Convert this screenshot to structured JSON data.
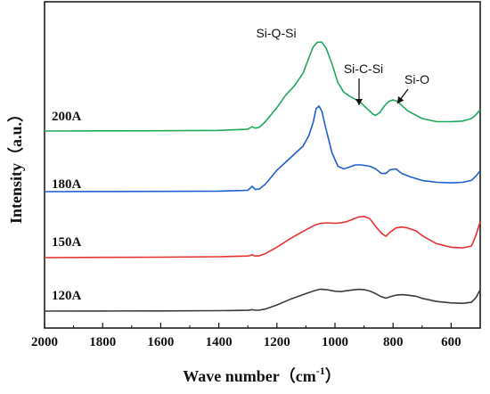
{
  "chart_data": {
    "type": "line",
    "xlabel": "Wave number（cm",
    "xlabel_sup": "-1",
    "xlabel_close": "）",
    "ylabel": "Intensity（a.u.）",
    "xlim": [
      2000,
      500
    ],
    "x_reversed": true,
    "x_ticks": [
      2000,
      1800,
      1600,
      1400,
      1200,
      1000,
      800,
      600
    ],
    "y_ticks_visible": false,
    "grid": false,
    "legend": "none",
    "series": [
      {
        "name": "120A",
        "color": "#3b3b3b",
        "x": [
          2000,
          1800,
          1600,
          1400,
          1300,
          1285,
          1275,
          1260,
          1240,
          1200,
          1150,
          1100,
          1070,
          1050,
          1030,
          1000,
          980,
          960,
          940,
          920,
          900,
          880,
          860,
          840,
          825,
          810,
          790,
          770,
          750,
          720,
          700,
          650,
          600,
          560,
          530,
          515,
          500
        ],
        "y": [
          0.0,
          0.005,
          0.01,
          0.02,
          0.04,
          0.07,
          0.045,
          0.05,
          0.1,
          0.3,
          0.6,
          0.85,
          1.0,
          1.07,
          1.05,
          0.97,
          0.95,
          0.99,
          1.03,
          1.06,
          1.05,
          0.98,
          0.85,
          0.7,
          0.63,
          0.7,
          0.78,
          0.8,
          0.78,
          0.72,
          0.62,
          0.47,
          0.4,
          0.38,
          0.43,
          0.65,
          1.05
        ]
      },
      {
        "name": "150A",
        "color": "#e8312f",
        "x": [
          2000,
          1800,
          1600,
          1400,
          1300,
          1285,
          1275,
          1260,
          1240,
          1200,
          1150,
          1100,
          1070,
          1050,
          1030,
          1000,
          980,
          960,
          940,
          920,
          900,
          880,
          860,
          840,
          825,
          810,
          790,
          770,
          750,
          720,
          700,
          650,
          600,
          560,
          530,
          515,
          500
        ],
        "y": [
          0.0,
          0.01,
          0.02,
          0.04,
          0.07,
          0.12,
          0.07,
          0.08,
          0.17,
          0.45,
          0.85,
          1.2,
          1.4,
          1.48,
          1.5,
          1.48,
          1.5,
          1.55,
          1.65,
          1.75,
          1.78,
          1.68,
          1.35,
          1.05,
          0.92,
          1.1,
          1.28,
          1.32,
          1.28,
          1.15,
          0.95,
          0.6,
          0.45,
          0.42,
          0.5,
          0.95,
          1.55
        ]
      },
      {
        "name": "180A",
        "color": "#1f5fd0",
        "x": [
          2000,
          1800,
          1600,
          1400,
          1300,
          1285,
          1275,
          1260,
          1240,
          1200,
          1150,
          1110,
          1090,
          1075,
          1065,
          1055,
          1045,
          1030,
          1010,
          990,
          970,
          950,
          930,
          910,
          880,
          860,
          840,
          825,
          810,
          790,
          770,
          740,
          700,
          650,
          600,
          560,
          530,
          515,
          500
        ],
        "y": [
          0.0,
          0.005,
          0.01,
          0.02,
          0.05,
          0.2,
          0.08,
          0.1,
          0.28,
          0.8,
          1.3,
          1.7,
          2.1,
          2.6,
          3.1,
          3.2,
          3.0,
          2.3,
          1.45,
          0.95,
          0.85,
          0.92,
          1.0,
          1.0,
          0.95,
          0.85,
          0.68,
          0.68,
          0.82,
          0.85,
          0.68,
          0.55,
          0.42,
          0.35,
          0.33,
          0.35,
          0.42,
          0.58,
          0.78
        ]
      },
      {
        "name": "200A",
        "color": "#1fa85c",
        "x": [
          2000,
          1800,
          1600,
          1400,
          1300,
          1285,
          1275,
          1260,
          1240,
          1200,
          1170,
          1140,
          1110,
          1090,
          1075,
          1060,
          1045,
          1030,
          1010,
          990,
          970,
          950,
          930,
          910,
          890,
          870,
          860,
          845,
          830,
          815,
          800,
          785,
          770,
          750,
          720,
          700,
          650,
          600,
          560,
          530,
          515,
          500
        ],
        "y": [
          0.0,
          0.005,
          0.01,
          0.02,
          0.06,
          0.14,
          0.09,
          0.12,
          0.3,
          0.75,
          1.15,
          1.45,
          1.85,
          2.35,
          2.7,
          2.85,
          2.85,
          2.65,
          2.15,
          1.55,
          1.25,
          1.12,
          1.02,
          0.9,
          0.72,
          0.55,
          0.5,
          0.6,
          0.8,
          0.95,
          1.0,
          0.95,
          0.82,
          0.65,
          0.5,
          0.4,
          0.3,
          0.3,
          0.32,
          0.4,
          0.52,
          0.68
        ]
      }
    ],
    "annotations": [
      {
        "text": "Si-Q-Si",
        "x": 1070
      },
      {
        "text": "Si-C-Si",
        "x": 905
      },
      {
        "text": "Si-O",
        "x": 790
      }
    ]
  }
}
